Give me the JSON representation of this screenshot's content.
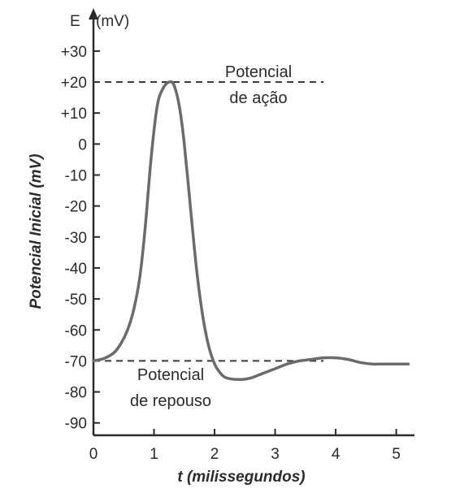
{
  "chart_data": {
    "type": "line",
    "title": "",
    "xlabel": "t (milissegundos)",
    "ylabel": "Potencial Inicial (mV)",
    "y_axis_header": "E",
    "y_axis_unit": "(mV)",
    "xlim": [
      0,
      5.3
    ],
    "ylim": [
      -94,
      36
    ],
    "x_ticks": [
      "0",
      "1",
      "2",
      "3",
      "4",
      "5"
    ],
    "y_ticks": [
      "+30",
      "+20",
      "+10",
      "0",
      "-10",
      "-20",
      "-30",
      "-40",
      "-50",
      "-60",
      "-70",
      "-80",
      "-90"
    ],
    "grid": false,
    "series": [
      {
        "x": [
          0,
          0.2,
          0.4,
          0.6,
          0.75,
          0.85,
          0.95,
          1.05,
          1.15,
          1.25,
          1.33,
          1.42,
          1.5,
          1.6,
          1.7,
          1.8,
          1.9,
          2.0,
          2.1,
          2.2,
          2.4,
          2.6,
          2.8,
          3.0,
          3.2,
          3.4,
          3.6,
          3.8,
          4.0,
          4.2,
          4.4,
          4.6,
          4.8,
          5.0,
          5.2
        ],
        "y": [
          -70,
          -69,
          -66,
          -58,
          -45,
          -28,
          -5,
          12,
          18,
          20,
          19,
          12,
          0,
          -20,
          -40,
          -55,
          -65,
          -71,
          -74,
          -75.5,
          -76,
          -75.5,
          -74,
          -72.5,
          -71,
          -70,
          -69.5,
          -69,
          -69,
          -69.5,
          -70.5,
          -71,
          -71,
          -71,
          -71
        ]
      }
    ],
    "reference_lines": [
      {
        "y": 20,
        "x_start": 0,
        "x_end": 3.8,
        "style": "dashed"
      },
      {
        "y": -70,
        "x_start": 0,
        "x_end": 3.8,
        "style": "dashed"
      }
    ],
    "annotations": [
      {
        "lines": [
          "Potencial",
          "de ação"
        ]
      },
      {
        "lines": [
          "Potencial",
          "de repouso"
        ]
      }
    ],
    "colors": {
      "curve": "#6b6b6b",
      "axis": "#2b2b2b",
      "dashed": "#3a3a3a",
      "text": "#2b2b2b"
    }
  }
}
